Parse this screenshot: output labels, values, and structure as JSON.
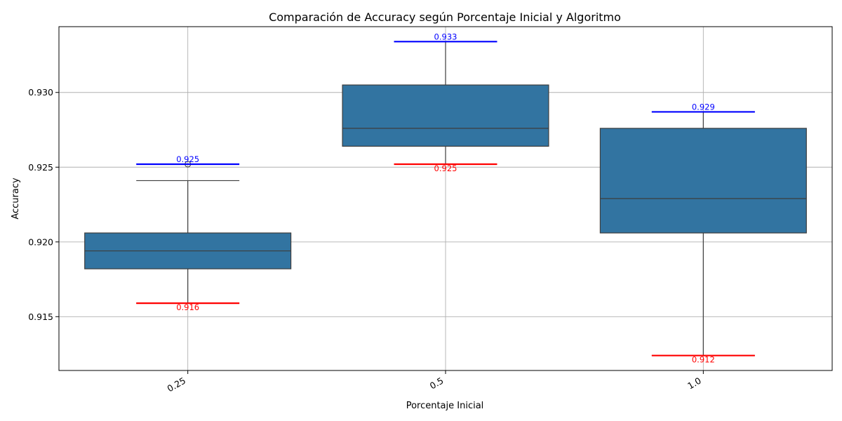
{
  "chart_data": {
    "type": "box",
    "title": "Comparación de Accuracy según Porcentaje Inicial y Algoritmo",
    "xlabel": "Porcentaje Inicial",
    "ylabel": "Accuracy",
    "categories": [
      "0.25",
      "0.5",
      "1.0"
    ],
    "ylim": [
      0.9114,
      0.9344
    ],
    "yticks": [
      0.915,
      0.92,
      0.925,
      0.93
    ],
    "ytick_labels": [
      "0.915",
      "0.920",
      "0.925",
      "0.930"
    ],
    "grid": true,
    "box_color": "#3274a1",
    "max_color": "#0000ff",
    "min_color": "#ff0000",
    "boxes": [
      {
        "category": "0.25",
        "q1": 0.9182,
        "median": 0.9194,
        "q3": 0.9206,
        "whisker_low": 0.9159,
        "whisker_high": 0.9241,
        "outliers": [
          0.9252
        ]
      },
      {
        "category": "0.5",
        "q1": 0.9264,
        "median": 0.9276,
        "q3": 0.9305,
        "whisker_low": 0.9252,
        "whisker_high": 0.9334,
        "outliers": []
      },
      {
        "category": "1.0",
        "q1": 0.9206,
        "median": 0.9229,
        "q3": 0.9276,
        "whisker_low": 0.9124,
        "whisker_high": 0.9287,
        "outliers": []
      }
    ],
    "max_markers": [
      {
        "category": "0.25",
        "value": 0.9252,
        "label": "0.925"
      },
      {
        "category": "0.5",
        "value": 0.9334,
        "label": "0.933"
      },
      {
        "category": "1.0",
        "value": 0.9287,
        "label": "0.929"
      }
    ],
    "min_markers": [
      {
        "category": "0.25",
        "value": 0.9159,
        "label": "0.916"
      },
      {
        "category": "0.5",
        "value": 0.9252,
        "label": "0.925"
      },
      {
        "category": "1.0",
        "value": 0.9124,
        "label": "0.912"
      }
    ]
  }
}
